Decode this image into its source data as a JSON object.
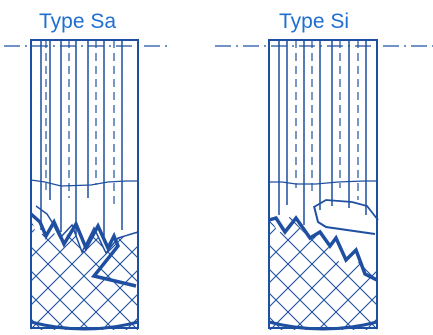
{
  "labels": {
    "type_sa": "Type Sa",
    "type_si": "Type Si"
  },
  "colors": {
    "line": "#1f4fa0",
    "label": "#1f6fd1",
    "background": "#ffffff"
  }
}
